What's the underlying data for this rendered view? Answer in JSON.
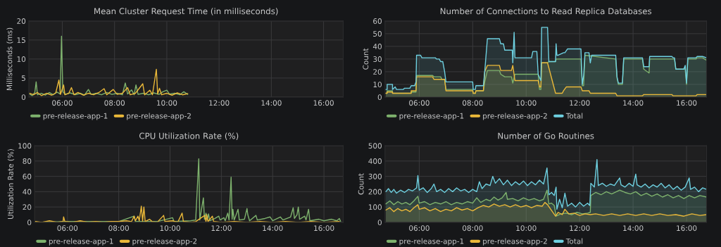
{
  "chart_data": [
    {
      "type": "line",
      "title": "Mean Cluster Request Time (in milliseconds)",
      "ylabel": "Milliseconds (ms)",
      "xlim": [
        4.72,
        16.75
      ],
      "xticks": [
        {
          "value": 6,
          "label": "06:00"
        },
        {
          "value": 8,
          "label": "08:00"
        },
        {
          "value": 10,
          "label": "10:00"
        },
        {
          "value": 12,
          "label": "12:00"
        },
        {
          "value": 14,
          "label": "14:00"
        },
        {
          "value": 16,
          "label": "16:00"
        }
      ],
      "ylim": [
        0,
        20
      ],
      "yticks": [
        0,
        5,
        10,
        15,
        20
      ],
      "grid": true,
      "legend": "bottom",
      "series": [
        {
          "name": "pre-release-app-1",
          "color": "#7eb26d",
          "x": [
            4.75,
            4.85,
            4.95,
            5.0,
            5.05,
            5.2,
            5.35,
            5.5,
            5.65,
            5.8,
            5.92,
            5.97,
            6.02,
            6.1,
            6.3,
            6.5,
            6.7,
            6.85,
            7.0,
            7.1,
            7.3,
            7.5,
            7.7,
            7.9,
            8.1,
            8.3,
            8.41,
            8.5,
            8.65,
            8.75,
            8.82,
            8.9,
            9.1,
            9.3,
            9.5,
            9.7,
            9.85,
            10.0,
            10.1,
            10.3,
            10.5,
            10.65,
            10.8
          ],
          "values": [
            0.8,
            0.4,
            1.2,
            4.0,
            0.6,
            1.0,
            0.5,
            1.2,
            0.6,
            1.3,
            0.8,
            16.0,
            1.5,
            0.7,
            1.1,
            0.6,
            1.0,
            0.5,
            2.0,
            0.7,
            1.0,
            0.6,
            1.2,
            0.7,
            1.0,
            0.6,
            3.7,
            0.8,
            1.9,
            0.6,
            3.2,
            0.7,
            1.0,
            0.6,
            1.1,
            0.7,
            1.4,
            1.8,
            0.8,
            1.0,
            0.6,
            1.4,
            0.7
          ]
        },
        {
          "name": "pre-release-app-2",
          "color": "#eab839",
          "x": [
            4.75,
            4.9,
            5.05,
            5.2,
            5.4,
            5.6,
            5.75,
            5.87,
            5.93,
            6.05,
            6.1,
            6.25,
            6.35,
            6.45,
            6.6,
            6.8,
            7.0,
            7.2,
            7.4,
            7.6,
            7.7,
            7.95,
            8.1,
            8.3,
            8.5,
            8.6,
            8.8,
            9.08,
            9.15,
            9.35,
            9.45,
            9.6,
            9.65,
            9.72,
            9.8,
            10.0,
            10.2,
            10.4,
            10.6,
            10.8
          ],
          "values": [
            1.0,
            0.6,
            1.2,
            0.4,
            1.0,
            0.5,
            1.1,
            4.5,
            0.7,
            3.2,
            0.6,
            1.0,
            2.5,
            0.6,
            1.2,
            0.5,
            1.0,
            0.6,
            1.2,
            2.2,
            0.6,
            2.0,
            0.7,
            1.0,
            2.5,
            0.6,
            1.0,
            3.5,
            0.6,
            1.8,
            0.6,
            7.3,
            0.8,
            2.3,
            0.6,
            1.0,
            0.5,
            1.1,
            0.6,
            0.9
          ]
        }
      ]
    },
    {
      "type": "area",
      "title": "Number of Connections to Read Replica Databases",
      "ylabel": "Count",
      "xlim": [
        4.72,
        16.75
      ],
      "xticks": [
        {
          "value": 6,
          "label": "06:00"
        },
        {
          "value": 8,
          "label": "08:00"
        },
        {
          "value": 10,
          "label": "10:00"
        },
        {
          "value": 12,
          "label": "12:00"
        },
        {
          "value": 14,
          "label": "14:00"
        },
        {
          "value": 16,
          "label": "16:00"
        }
      ],
      "ylim": [
        0,
        60
      ],
      "yticks": [
        0,
        10,
        20,
        30,
        40,
        50,
        60
      ],
      "grid": true,
      "legend": "bottom",
      "series": [
        {
          "name": "pre-release-app-1",
          "color": "#7eb26d",
          "x": [
            4.75,
            4.8,
            4.8,
            5.0,
            5.0,
            5.7,
            5.7,
            5.88,
            5.9,
            6.5,
            6.55,
            6.8,
            6.85,
            6.95,
            7.0,
            8.0,
            8.02,
            8.1,
            8.12,
            8.4,
            8.45,
            8.55,
            9.0,
            9.05,
            9.2,
            9.45,
            9.5,
            9.58,
            10.45,
            10.5,
            10.55,
            10.58,
            10.8,
            10.85,
            11.1,
            11.12,
            12.05,
            12.1,
            12.15,
            12.2,
            13.35,
            13.4,
            13.45,
            13.6,
            13.65,
            14.35,
            14.4,
            14.6,
            14.62,
            15.55,
            15.6,
            15.95,
            16.0,
            16.05,
            16.35,
            16.4,
            16.6,
            16.75
          ],
          "values": [
            3,
            3,
            5,
            5,
            3,
            3,
            4,
            4,
            17,
            17,
            16,
            16,
            14,
            14,
            6,
            6,
            3,
            3,
            5,
            5,
            12,
            21,
            21,
            18,
            16,
            16,
            11,
            18,
            18,
            6,
            6,
            27,
            27,
            28,
            28,
            30,
            30,
            9,
            9,
            33,
            30,
            15,
            10,
            10,
            30,
            30,
            22,
            19,
            30,
            30,
            22,
            22,
            10,
            30,
            30,
            31,
            31,
            29
          ]
        },
        {
          "name": "pre-release-app-2",
          "color": "#eab839",
          "x": [
            4.75,
            4.8,
            4.8,
            5.0,
            5.0,
            5.7,
            5.7,
            5.88,
            5.9,
            6.5,
            6.55,
            6.95,
            7.0,
            8.0,
            8.02,
            8.1,
            8.12,
            8.4,
            8.45,
            8.55,
            9.0,
            9.05,
            9.45,
            9.5,
            9.58,
            10.45,
            10.5,
            10.55,
            10.58,
            10.8,
            11.1,
            11.35,
            11.4,
            11.5,
            12.05,
            12.1,
            12.35,
            12.4,
            13.35,
            13.4,
            14.35,
            14.4,
            15.45,
            15.5,
            16.35,
            16.4,
            16.75
          ],
          "values": [
            3,
            3,
            4,
            4,
            3,
            3,
            5,
            5,
            16,
            16,
            14,
            14,
            5,
            5,
            3,
            3,
            5,
            5,
            20,
            25,
            25,
            21,
            21,
            25,
            13,
            13,
            8,
            8,
            27,
            27,
            3,
            3,
            5,
            8,
            8,
            5,
            5,
            3,
            3,
            1,
            1,
            2,
            2,
            1,
            1,
            2,
            2
          ]
        },
        {
          "name": "Total",
          "color": "#6ed0e0",
          "x": [
            4.75,
            4.8,
            4.8,
            5.0,
            5.0,
            5.1,
            5.15,
            5.4,
            5.45,
            5.65,
            5.7,
            5.83,
            5.88,
            5.9,
            6.05,
            6.1,
            6.6,
            6.65,
            6.75,
            6.8,
            6.88,
            6.95,
            7.0,
            8.0,
            8.02,
            8.1,
            8.12,
            8.4,
            8.45,
            8.55,
            9.0,
            9.05,
            9.15,
            9.2,
            9.48,
            9.5,
            9.55,
            9.58,
            10.2,
            10.25,
            10.4,
            10.45,
            10.55,
            10.58,
            10.8,
            10.85,
            11.1,
            11.12,
            11.15,
            11.2,
            11.4,
            11.45,
            11.55,
            12.05,
            12.1,
            12.15,
            12.2,
            12.35,
            12.4,
            12.45,
            13.35,
            13.4,
            13.45,
            13.6,
            13.65,
            14.35,
            14.4,
            14.6,
            14.62,
            15.45,
            15.5,
            15.55,
            15.6,
            15.9,
            15.95,
            16.0,
            16.05,
            16.35,
            16.4,
            16.6,
            16.75
          ],
          "values": [
            6,
            6,
            10,
            10,
            6,
            8,
            6,
            6,
            7,
            7,
            9,
            9,
            12,
            33,
            33,
            31,
            31,
            30,
            30,
            28,
            28,
            20,
            12,
            12,
            6,
            6,
            9,
            9,
            20,
            46,
            46,
            42,
            42,
            37,
            37,
            27,
            51,
            31,
            31,
            36,
            36,
            18,
            13,
            55,
            55,
            28,
            28,
            42,
            33,
            33,
            35,
            35,
            38,
            38,
            10,
            17,
            35,
            35,
            27,
            33,
            33,
            16,
            11,
            11,
            31,
            31,
            24,
            24,
            32,
            32,
            31,
            31,
            22,
            22,
            25,
            11,
            31,
            31,
            32,
            32,
            31
          ]
        }
      ]
    },
    {
      "type": "line",
      "title": "CPU Utilization Rate (%)",
      "ylabel": "Utilization Rate (%)",
      "xlim": [
        4.72,
        16.75
      ],
      "xticks": [
        {
          "value": 6,
          "label": "06:00"
        },
        {
          "value": 8,
          "label": "08:00"
        },
        {
          "value": 10,
          "label": "10:00"
        },
        {
          "value": 12,
          "label": "12:00"
        },
        {
          "value": 14,
          "label": "14:00"
        },
        {
          "value": 16,
          "label": "16:00"
        }
      ],
      "ylim": [
        0,
        100
      ],
      "yticks": [
        0,
        20,
        40,
        60,
        80,
        100
      ],
      "grid": true,
      "legend": "bottom",
      "series": [
        {
          "name": "pre-release-app-1",
          "color": "#7eb26d",
          "x": [
            4.75,
            6.0,
            8.0,
            8.6,
            8.65,
            9.5,
            10.1,
            10.15,
            10.8,
            11.0,
            11.12,
            11.16,
            11.3,
            11.34,
            11.4,
            11.45,
            11.5,
            11.55,
            11.75,
            11.9,
            11.95,
            12.1,
            12.15,
            12.25,
            12.3,
            12.38,
            12.42,
            12.45,
            12.5,
            12.6,
            12.65,
            12.7,
            12.9,
            13.0,
            13.03,
            13.1,
            13.35,
            13.4,
            13.7,
            13.9,
            14.0,
            14.3,
            14.4,
            14.7,
            14.8,
            14.85,
            14.95,
            15.0,
            15.05,
            15.25,
            15.3,
            15.4,
            15.45,
            15.8,
            16.0,
            16.3,
            16.5,
            16.6,
            16.65
          ],
          "values": [
            0,
            1,
            1,
            8,
            1,
            1,
            6,
            1,
            2,
            3,
            83,
            3,
            32,
            4,
            12,
            3,
            11,
            2,
            5,
            8,
            3,
            6,
            2,
            12,
            3,
            59,
            4,
            17,
            3,
            12,
            17,
            3,
            4,
            18,
            10,
            2,
            9,
            3,
            5,
            7,
            2,
            7,
            3,
            7,
            19,
            5,
            10,
            20,
            4,
            8,
            3,
            17,
            2,
            4,
            2,
            4,
            2,
            5,
            1
          ]
        },
        {
          "name": "pre-release-app-2",
          "color": "#eab839",
          "x": [
            4.75,
            5.0,
            5.3,
            5.6,
            5.83,
            5.85,
            5.9,
            6.2,
            6.5,
            6.8,
            7.1,
            7.4,
            7.7,
            8.0,
            8.3,
            8.5,
            8.6,
            8.65,
            8.75,
            8.8,
            8.88,
            8.93,
            8.98,
            9.03,
            9.2,
            9.3,
            9.5,
            9.75,
            9.8,
            10.1,
            10.3,
            10.47,
            10.52,
            10.8,
            11.0,
            11.35,
            11.4,
            11.43,
            11.48,
            11.65,
            11.7,
            12.0,
            12.5,
            13.0,
            13.5,
            14.0,
            14.5,
            15.0,
            15.5,
            16.0,
            16.6
          ],
          "values": [
            1,
            0,
            2,
            0,
            1,
            7,
            1,
            0,
            2,
            0,
            1,
            0,
            1,
            1,
            2,
            1,
            8,
            2,
            8,
            2,
            21,
            1,
            20,
            1,
            4,
            1,
            0,
            9,
            1,
            2,
            0,
            12,
            1,
            0,
            1,
            9,
            1,
            10,
            1,
            8,
            1,
            0,
            1,
            0,
            1,
            0,
            1,
            0,
            1,
            0,
            1
          ]
        }
      ]
    },
    {
      "type": "area",
      "title": "Number of Go Routines",
      "ylabel": "Count",
      "xlim": [
        4.72,
        16.75
      ],
      "xticks": [
        {
          "value": 6,
          "label": "06:00"
        },
        {
          "value": 8,
          "label": "08:00"
        },
        {
          "value": 10,
          "label": "10:00"
        },
        {
          "value": 12,
          "label": "12:00"
        },
        {
          "value": 14,
          "label": "14:00"
        },
        {
          "value": 16,
          "label": "16:00"
        }
      ],
      "ylim": [
        0,
        500
      ],
      "yticks": [
        0,
        100,
        200,
        300,
        400,
        500
      ],
      "grid": true,
      "legend": "bottom",
      "series": [
        {
          "name": "pre-release-app-1",
          "color": "#7eb26d",
          "x": [
            4.75,
            4.9,
            5.05,
            5.2,
            5.35,
            5.5,
            5.65,
            5.8,
            5.95,
            6.0,
            6.2,
            6.4,
            6.6,
            6.8,
            7.0,
            7.2,
            7.4,
            7.6,
            7.8,
            8.0,
            8.15,
            8.3,
            8.5,
            8.65,
            8.8,
            8.95,
            9.1,
            9.25,
            9.3,
            9.5,
            9.7,
            9.9,
            10.1,
            10.3,
            10.5,
            10.65,
            10.78,
            10.85,
            10.95,
            11.05,
            11.12,
            11.3,
            11.5,
            11.7,
            11.9,
            12.1,
            12.3,
            12.4,
            12.42,
            12.6,
            12.8,
            13.0,
            13.2,
            13.5,
            13.7,
            13.9,
            14.1,
            14.3,
            14.5,
            14.7,
            14.9,
            15.1,
            15.3,
            15.5,
            15.7,
            15.9,
            16.1,
            16.3,
            16.5,
            16.75
          ],
          "values": [
            120,
            140,
            115,
            135,
            120,
            130,
            115,
            140,
            170,
            125,
            135,
            115,
            130,
            120,
            135,
            115,
            130,
            120,
            135,
            125,
            160,
            130,
            150,
            140,
            165,
            145,
            160,
            195,
            150,
            155,
            140,
            160,
            145,
            155,
            140,
            150,
            210,
            120,
            125,
            110,
            40,
            55,
            60,
            50,
            65,
            55,
            60,
            65,
            175,
            195,
            180,
            200,
            185,
            210,
            195,
            185,
            200,
            175,
            190,
            170,
            185,
            165,
            180,
            160,
            175,
            155,
            175,
            160,
            175,
            165
          ]
        },
        {
          "name": "pre-release-app-2",
          "color": "#eab839",
          "x": [
            4.75,
            4.9,
            5.05,
            5.2,
            5.35,
            5.5,
            5.65,
            5.8,
            5.95,
            6.0,
            6.2,
            6.4,
            6.6,
            6.8,
            7.0,
            7.2,
            7.4,
            7.6,
            7.8,
            8.0,
            8.2,
            8.4,
            8.6,
            8.8,
            9.0,
            9.2,
            9.4,
            9.6,
            9.8,
            10.0,
            10.2,
            10.4,
            10.6,
            10.7,
            10.8,
            11.1,
            11.2,
            11.35,
            11.45,
            11.6,
            11.8,
            12.0,
            12.2,
            12.4,
            12.6,
            12.9,
            13.2,
            13.5,
            13.8,
            14.1,
            14.4,
            14.7,
            15.0,
            15.3,
            15.6,
            15.9,
            16.2,
            16.5,
            16.75
          ],
          "values": [
            80,
            95,
            70,
            90,
            75,
            85,
            70,
            95,
            115,
            85,
            95,
            75,
            90,
            70,
            85,
            75,
            95,
            80,
            90,
            75,
            95,
            110,
            100,
            120,
            105,
            115,
            100,
            115,
            100,
            110,
            95,
            110,
            105,
            130,
            115,
            40,
            65,
            50,
            85,
            55,
            60,
            45,
            55,
            50,
            55,
            45,
            55,
            45,
            55,
            45,
            55,
            45,
            55,
            45,
            50,
            40,
            55,
            45,
            50
          ]
        },
        {
          "name": "Total",
          "color": "#6ed0e0",
          "x": [
            4.75,
            4.85,
            4.95,
            5.05,
            5.15,
            5.3,
            5.45,
            5.6,
            5.75,
            5.9,
            5.95,
            6.0,
            6.15,
            6.3,
            6.45,
            6.55,
            6.65,
            6.8,
            6.95,
            7.1,
            7.25,
            7.4,
            7.55,
            7.7,
            7.85,
            8.0,
            8.15,
            8.25,
            8.35,
            8.5,
            8.65,
            8.75,
            8.85,
            9.0,
            9.15,
            9.3,
            9.45,
            9.6,
            9.75,
            9.9,
            10.05,
            10.2,
            10.35,
            10.5,
            10.65,
            10.78,
            10.85,
            10.95,
            11.05,
            11.12,
            11.15,
            11.25,
            11.35,
            11.45,
            11.55,
            11.7,
            11.85,
            12.0,
            12.15,
            12.3,
            12.38,
            12.42,
            12.55,
            12.65,
            12.7,
            12.85,
            13.0,
            13.15,
            13.3,
            13.5,
            13.55,
            13.7,
            13.85,
            14.0,
            14.1,
            14.15,
            14.3,
            14.45,
            14.6,
            14.75,
            14.9,
            15.05,
            15.2,
            15.35,
            15.5,
            15.65,
            15.8,
            15.95,
            16.1,
            16.15,
            16.3,
            16.45,
            16.6,
            16.75
          ],
          "values": [
            200,
            220,
            195,
            215,
            190,
            210,
            195,
            215,
            205,
            225,
            305,
            210,
            225,
            195,
            220,
            250,
            200,
            215,
            195,
            220,
            200,
            225,
            205,
            215,
            195,
            215,
            200,
            265,
            220,
            250,
            240,
            300,
            255,
            285,
            245,
            275,
            240,
            265,
            245,
            270,
            240,
            265,
            245,
            275,
            250,
            355,
            180,
            195,
            175,
            230,
            85,
            150,
            95,
            190,
            105,
            125,
            100,
            130,
            105,
            125,
            110,
            255,
            230,
            410,
            240,
            255,
            235,
            250,
            240,
            290,
            245,
            230,
            255,
            235,
            315,
            245,
            230,
            250,
            225,
            245,
            230,
            255,
            225,
            245,
            215,
            235,
            210,
            230,
            290,
            215,
            230,
            200,
            225,
            215
          ]
        }
      ]
    }
  ]
}
